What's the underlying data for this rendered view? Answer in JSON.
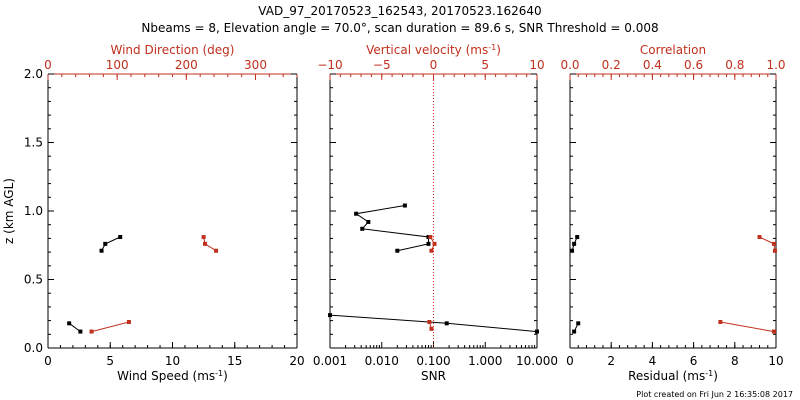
{
  "figure": {
    "title": "VAD_97_20170523_162543, 20170523.162640",
    "subtitle": "Nbeams = 8, Elevation angle = 70.0°, scan duration = 89.6 s, SNR Threshold = 0.008",
    "footer": "Plot created on Fri Jun  2 16:35:08 2017",
    "colors": {
      "primary": "#000000",
      "secondary": "#c0301e",
      "guide": "#d42020"
    }
  },
  "chart_data": [
    {
      "type": "line",
      "panel": "left",
      "xlabel": "Wind Speed (ms⁻¹)",
      "x2label": "Wind Direction (deg)",
      "ylabel": "z (km AGL)",
      "xlim": [
        0,
        20
      ],
      "x2lim": [
        0,
        360
      ],
      "ylim": [
        0,
        2.0
      ],
      "x_ticks": [
        "0",
        "5",
        "10",
        "15",
        "20"
      ],
      "x2_ticks": [
        "0",
        "100",
        "200",
        "300"
      ],
      "y_ticks": [
        "0.0",
        "0.5",
        "1.0",
        "1.5",
        "2.0"
      ],
      "series": [
        {
          "axis": "bottom",
          "color": "#000000",
          "segments": [
            [
              [
                5.8,
                0.81
              ],
              [
                4.6,
                0.76
              ],
              [
                4.3,
                0.71
              ]
            ],
            [
              [
                1.7,
                0.18
              ],
              [
                2.6,
                0.12
              ]
            ]
          ]
        },
        {
          "axis": "top",
          "color": "#c0301e",
          "segments": [
            [
              [
                225,
                0.81
              ],
              [
                227,
                0.76
              ],
              [
                243,
                0.71
              ]
            ],
            [
              [
                117,
                0.19
              ],
              [
                63,
                0.12
              ]
            ]
          ]
        }
      ]
    },
    {
      "type": "line",
      "panel": "middle",
      "xlabel": "SNR",
      "x2label": "Vertical velocity (ms⁻¹)",
      "xscale": "log",
      "xlim": [
        0.001,
        10
      ],
      "x2lim": [
        -10,
        10
      ],
      "ylim": [
        0,
        2.0
      ],
      "x_ticks": [
        "0.001",
        "0.010",
        "0.100",
        "1.000",
        "10.000"
      ],
      "x2_ticks": [
        "−10",
        "−5",
        "0",
        "5",
        "10"
      ],
      "guide_x2": 0,
      "series": [
        {
          "axis": "bottom",
          "color": "#000000",
          "segments": [
            [
              [
                0.028,
                1.04
              ],
              [
                0.0032,
                0.98
              ],
              [
                0.0055,
                0.92
              ],
              [
                0.0042,
                0.87
              ],
              [
                0.08,
                0.81
              ],
              [
                0.08,
                0.76
              ],
              [
                0.02,
                0.71
              ]
            ],
            [
              [
                0.001,
                0.24
              ],
              [
                0.18,
                0.18
              ],
              [
                10,
                0.12
              ]
            ]
          ]
        },
        {
          "axis": "top",
          "color": "#c0301e",
          "segments": [
            [
              [
                -0.3,
                0.81
              ],
              [
                0.1,
                0.76
              ],
              [
                -0.2,
                0.71
              ]
            ],
            [
              [
                -0.4,
                0.19
              ],
              [
                -0.2,
                0.14
              ]
            ]
          ]
        }
      ]
    },
    {
      "type": "line",
      "panel": "right",
      "xlabel": "Residual (ms⁻¹)",
      "x2label": "Correlation",
      "xlim": [
        0,
        10
      ],
      "x2lim": [
        0,
        1.0
      ],
      "ylim": [
        0,
        2.0
      ],
      "x_ticks": [
        "0",
        "2",
        "4",
        "6",
        "8",
        "10"
      ],
      "x2_ticks": [
        "0.0",
        "0.2",
        "0.4",
        "0.6",
        "0.8",
        "1.0"
      ],
      "series": [
        {
          "axis": "bottom",
          "color": "#000000",
          "segments": [
            [
              [
                0.35,
                0.81
              ],
              [
                0.2,
                0.76
              ],
              [
                0.1,
                0.71
              ]
            ],
            [
              [
                0.4,
                0.18
              ],
              [
                0.2,
                0.12
              ]
            ]
          ]
        },
        {
          "axis": "top",
          "color": "#c0301e",
          "segments": [
            [
              [
                0.92,
                0.81
              ],
              [
                0.99,
                0.76
              ],
              [
                0.995,
                0.71
              ]
            ],
            [
              [
                0.73,
                0.19
              ],
              [
                0.99,
                0.12
              ]
            ]
          ]
        }
      ]
    }
  ]
}
